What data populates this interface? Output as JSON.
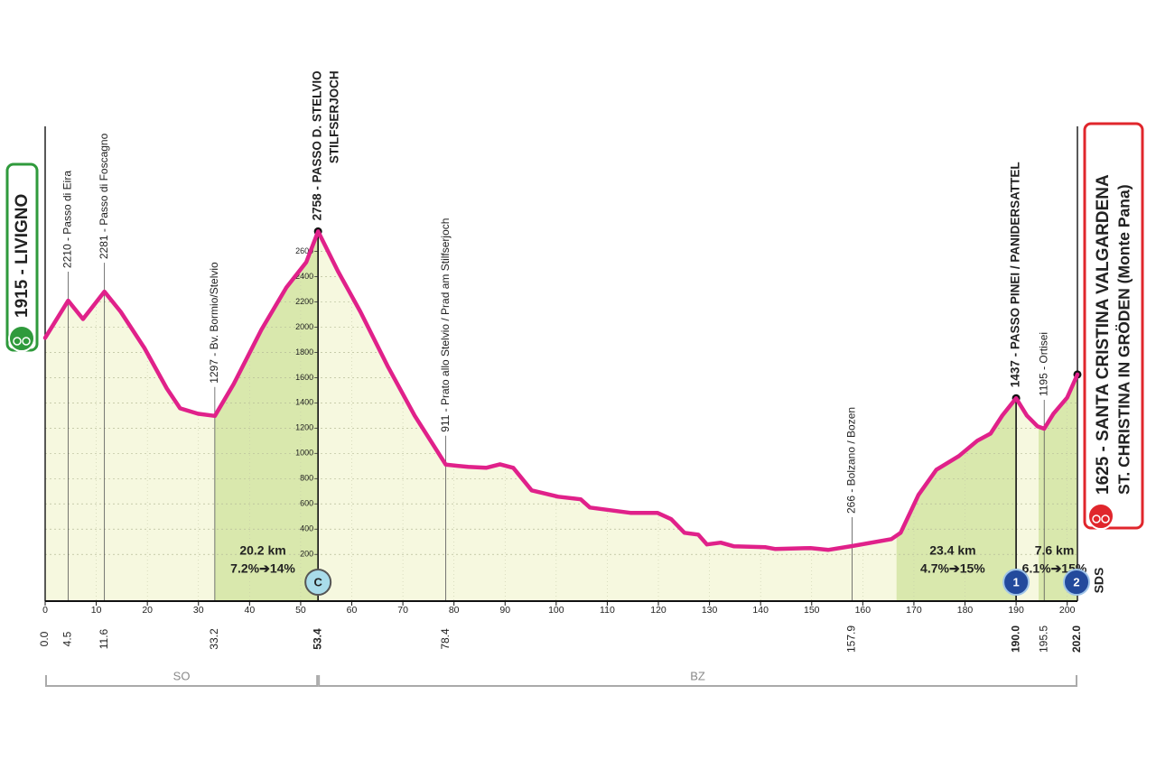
{
  "chart_data": {
    "type": "profile",
    "line_color": "#e0218a",
    "fill_color": "#f6f8df",
    "climb_color": "#d9e8ad",
    "grid": true,
    "x": [
      0,
      4.5,
      7.4,
      11.6,
      14.8,
      19.4,
      23.8,
      26.4,
      29.9,
      33.2,
      36.9,
      42.3,
      47.2,
      51.1,
      53.4,
      57.3,
      61.7,
      67,
      72.3,
      78.4,
      82.8,
      86.3,
      89,
      91.6,
      95.2,
      100.4,
      104.8,
      106.6,
      114.5,
      119.8,
      122.5,
      125.1,
      127.8,
      129.5,
      132.2,
      134.8,
      141,
      142.8,
      149.8,
      153.3,
      157.9,
      165.6,
      167.4,
      170.9,
      174.4,
      178.8,
      182.4,
      185,
      187.3,
      190,
      192.1,
      194.2,
      195.5,
      197.3,
      200,
      202
    ],
    "values": [
      1915,
      2210,
      2064,
      2281,
      2121,
      1836,
      1514,
      1357,
      1314,
      1297,
      1550,
      1979,
      2314,
      2514,
      2758,
      2443,
      2121,
      1693,
      1300,
      911,
      893,
      886,
      914,
      886,
      707,
      657,
      636,
      571,
      529,
      529,
      479,
      371,
      357,
      279,
      293,
      264,
      257,
      243,
      250,
      236,
      266,
      321,
      371,
      671,
      871,
      979,
      1100,
      1157,
      1300,
      1437,
      1300,
      1214,
      1195,
      1314,
      1443,
      1625
    ],
    "xlim": [
      0,
      202
    ],
    "ylim": [
      -170,
      3590
    ],
    "xticks": [
      0,
      10,
      20,
      30,
      40,
      50,
      60,
      70,
      80,
      90,
      100,
      110,
      120,
      130,
      140,
      150,
      160,
      170,
      180,
      190,
      200
    ],
    "yticks": [
      200,
      400,
      600,
      800,
      1000,
      1200,
      1400,
      1600,
      1800,
      2000,
      2200,
      2400,
      2600
    ],
    "km_marks": [
      {
        "value": 0,
        "label": "0.0"
      },
      4.5,
      11.6,
      33.2,
      53.4,
      78.4,
      157.9,
      {
        "value": 190,
        "label": "190.0"
      },
      195.5,
      {
        "value": 202,
        "label": "202.0"
      }
    ],
    "waypoints": [
      {
        "km": 4.5,
        "elevation": 2210,
        "label": "2210 - Passo di Eira"
      },
      {
        "km": 11.6,
        "elevation": 2281,
        "label": "2281 - Passo di Foscagno"
      },
      {
        "km": 33.2,
        "elevation": 1297,
        "label": "1297 - Bv. Bormio/Stelvio"
      },
      {
        "km": 78.4,
        "elevation": 911,
        "label": "911 - Prato allo Stelvio / Prad am Stilfserjoch"
      },
      {
        "km": 157.9,
        "elevation": 266,
        "label": "266 - Bolzano / Bozen"
      },
      {
        "km": 195.5,
        "elevation": 1195,
        "label": "1195 - Ortisei"
      }
    ],
    "summits": [
      {
        "km": 53.4,
        "elevation": 2758,
        "label": "2758 - PASSO D. STELVIO",
        "label2": "STILFSERJOCH",
        "badge": "C"
      },
      {
        "km": 190,
        "elevation": 1437,
        "label": "1437 - PASSO PINEI / PANIDERSATTEL",
        "badge": "1"
      }
    ],
    "start": {
      "label": "1915 - LIVIGNO"
    },
    "finish": {
      "km": 202,
      "elevation": 1625,
      "label": "1625 - SANTA CRISTINA VALGARDENA",
      "label2": "ST. CHRISTINA IN GRÖDEN (Monte Pana)",
      "badge": "2"
    },
    "climbs": [
      {
        "start": 33.2,
        "end": 53.4,
        "length": "20.2 km",
        "gradient": "7.2%➔14%"
      },
      {
        "start": 166.6,
        "end": 190,
        "length": "23.4 km",
        "gradient": "4.7%➔15%"
      },
      {
        "start": 194.4,
        "end": 202,
        "length": "7.6 km",
        "gradient": "6.1%➔15%"
      }
    ],
    "regions": [
      {
        "start": 0,
        "end": 53.4,
        "label": "SO"
      },
      {
        "start": 53.4,
        "end": 202,
        "label": "BZ"
      }
    ],
    "sds": "SDS"
  }
}
